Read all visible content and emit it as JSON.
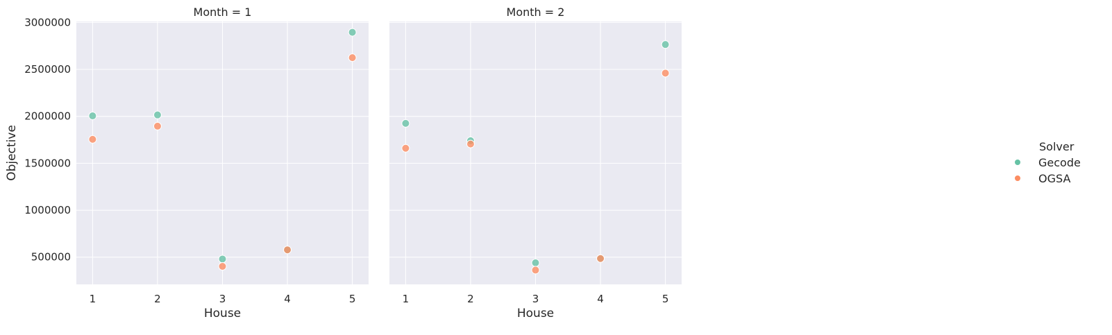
{
  "chart_data": [
    {
      "type": "scatter",
      "title": "Month = 1",
      "xlabel": "House",
      "ylabel": "Objective",
      "x_ticks": [
        1,
        2,
        3,
        4,
        5
      ],
      "y_ticks": [
        500000,
        1000000,
        1500000,
        2000000,
        2500000,
        3000000
      ],
      "xlim": [
        0.75,
        5.25
      ],
      "ylim": [
        210000,
        3010000
      ],
      "series": [
        {
          "name": "Gecode",
          "color": "#66c2a5",
          "points": [
            [
              1,
              2005000
            ],
            [
              2,
              2015000
            ],
            [
              3,
              480000
            ],
            [
              4,
              578000
            ],
            [
              5,
              2895000
            ]
          ]
        },
        {
          "name": "OGSA",
          "color": "#fc8d62",
          "points": [
            [
              1,
              1755000
            ],
            [
              2,
              1895000
            ],
            [
              3,
              402000
            ],
            [
              4,
              578000
            ],
            [
              5,
              2625000
            ]
          ]
        }
      ]
    },
    {
      "type": "scatter",
      "title": "Month = 2",
      "xlabel": "House",
      "ylabel": "",
      "x_ticks": [
        1,
        2,
        3,
        4,
        5
      ],
      "y_ticks": [
        500000,
        1000000,
        1500000,
        2000000,
        2500000,
        3000000
      ],
      "xlim": [
        0.75,
        5.25
      ],
      "ylim": [
        210000,
        3010000
      ],
      "series": [
        {
          "name": "Gecode",
          "color": "#66c2a5",
          "points": [
            [
              1,
              1925000
            ],
            [
              2,
              1740000
            ],
            [
              3,
              440000
            ],
            [
              4,
              485000
            ],
            [
              5,
              2765000
            ]
          ]
        },
        {
          "name": "OGSA",
          "color": "#fc8d62",
          "points": [
            [
              1,
              1660000
            ],
            [
              2,
              1705000
            ],
            [
              3,
              362000
            ],
            [
              4,
              485000
            ],
            [
              5,
              2460000
            ]
          ]
        }
      ]
    }
  ],
  "legend": {
    "title": "Solver",
    "placement": "right",
    "items": [
      {
        "label": "Gecode",
        "color": "#66c2a5"
      },
      {
        "label": "OGSA",
        "color": "#fc8d62"
      }
    ]
  },
  "style": {
    "panel_bg": "#eaeaf2",
    "grid_color": "#ffffff",
    "marker_opacity": 0.8
  }
}
